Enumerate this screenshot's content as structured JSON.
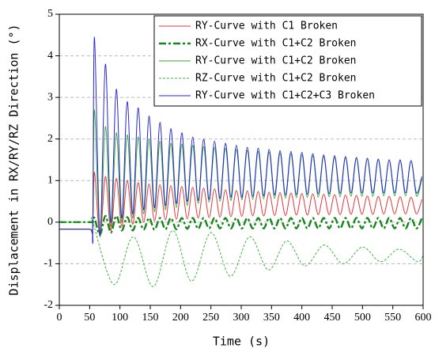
{
  "chart_data": {
    "type": "line",
    "xlabel": "Time (s)",
    "ylabel": "Displacement in RX/RY/RZ Direction (°)",
    "xlim": [
      0,
      600
    ],
    "ylim": [
      -2,
      5
    ],
    "xticks": [
      0,
      50,
      100,
      150,
      200,
      250,
      300,
      350,
      400,
      450,
      500,
      550,
      600
    ],
    "yticks": [
      -2,
      -1,
      0,
      1,
      2,
      3,
      4,
      5
    ],
    "grid": true,
    "legend": "upper right",
    "x": [
      0,
      50,
      55,
      58,
      67,
      76,
      85,
      94,
      103,
      112,
      121,
      130,
      139,
      148,
      157,
      166,
      175,
      184,
      193,
      202,
      211,
      220,
      229,
      238,
      247,
      256,
      265,
      274,
      283,
      292,
      301,
      310,
      319,
      328,
      337,
      346,
      355,
      364,
      373,
      382,
      391,
      400,
      409,
      418,
      427,
      436,
      445,
      454,
      463,
      472,
      481,
      490,
      499,
      508,
      517,
      526,
      535,
      544,
      553,
      562,
      571,
      580,
      589,
      598
    ],
    "series": [
      {
        "name": "RY-Curve with C1 Broken",
        "color": "#e8363a",
        "dash": "solid",
        "values": [
          -0.17,
          -0.17,
          -0.17,
          1.2,
          -0.35,
          1.1,
          -0.2,
          1.05,
          -0.1,
          1.0,
          -0.05,
          0.95,
          0,
          0.92,
          0.03,
          0.9,
          0.05,
          0.88,
          0.07,
          0.86,
          0.08,
          0.84,
          0.1,
          0.82,
          0.11,
          0.8,
          0.12,
          0.78,
          0.13,
          0.76,
          0.14,
          0.75,
          0.15,
          0.74,
          0.15,
          0.72,
          0.16,
          0.71,
          0.16,
          0.7,
          0.17,
          0.69,
          0.17,
          0.68,
          0.18,
          0.67,
          0.18,
          0.66,
          0.18,
          0.65,
          0.19,
          0.64,
          0.19,
          0.63,
          0.19,
          0.62,
          0.2,
          0.62,
          0.2,
          0.61,
          0.2,
          0.6,
          0.2,
          0.55
        ]
      },
      {
        "name": "RX-Curve with C1+C2 Broken",
        "color": "#16861b",
        "dash": "dashdot",
        "values": [
          0,
          0,
          0,
          0.1,
          -0.3,
          0.15,
          -0.25,
          0.15,
          -0.2,
          0.12,
          -0.2,
          0.1,
          -0.18,
          0.1,
          -0.18,
          0.1,
          -0.17,
          0.1,
          -0.17,
          0.1,
          -0.16,
          0.1,
          -0.16,
          0.1,
          -0.15,
          0.1,
          -0.15,
          0.1,
          -0.15,
          0.1,
          -0.15,
          0.1,
          -0.15,
          0.1,
          -0.15,
          0.1,
          -0.15,
          0.1,
          -0.15,
          0.1,
          -0.15,
          0.1,
          -0.15,
          0.1,
          -0.15,
          0.1,
          -0.15,
          0.1,
          -0.15,
          0.1,
          -0.15,
          0.1,
          -0.15,
          0.1,
          -0.15,
          0.1,
          -0.15,
          0.1,
          -0.15,
          0.1,
          -0.15,
          0.1,
          -0.15,
          0.1
        ]
      },
      {
        "name": "RY-Curve with C1+C2 Broken",
        "color": "#3aa63a",
        "dash": "solid",
        "values": [
          -0.17,
          -0.17,
          -0.17,
          2.7,
          -0.35,
          2.3,
          -0.1,
          2.15,
          0,
          2.1,
          0.1,
          2.05,
          0.2,
          2.0,
          0.25,
          1.95,
          0.3,
          1.9,
          0.35,
          1.88,
          0.4,
          1.85,
          0.45,
          1.82,
          0.48,
          1.8,
          0.5,
          1.78,
          0.52,
          1.75,
          0.54,
          1.72,
          0.55,
          1.7,
          0.56,
          1.68,
          0.57,
          1.66,
          0.58,
          1.64,
          0.59,
          1.62,
          0.6,
          1.6,
          0.6,
          1.58,
          0.61,
          1.56,
          0.61,
          1.55,
          0.62,
          1.53,
          0.62,
          1.52,
          0.62,
          1.5,
          0.63,
          1.49,
          0.63,
          1.48,
          0.63,
          1.47,
          0.63,
          1.05
        ]
      },
      {
        "name": "RZ-Curve with C1+C2 Broken",
        "color": "#3cb33c",
        "dash": "dashed",
        "x": [
          0,
          50,
          55,
          90,
          122,
          155,
          187,
          218,
          250,
          282,
          314,
          345,
          375,
          405,
          437,
          468,
          500,
          530,
          560,
          590,
          600
        ],
        "values": [
          0,
          0,
          0,
          -1.5,
          -0.35,
          -1.55,
          -0.2,
          -1.42,
          -0.25,
          -1.3,
          -0.35,
          -1.15,
          -0.45,
          -1.05,
          -0.55,
          -1.0,
          -0.6,
          -0.95,
          -0.65,
          -0.95,
          -0.8
        ]
      },
      {
        "name": "RY-Curve with C1+C2+C3 Broken",
        "color": "#2626d6",
        "dash": "solid",
        "values": [
          -0.17,
          -0.17,
          -0.17,
          4.45,
          -0.3,
          3.8,
          0,
          3.2,
          0.1,
          2.9,
          0.2,
          2.75,
          0.3,
          2.55,
          0.35,
          2.4,
          0.4,
          2.25,
          0.45,
          2.15,
          0.5,
          2.05,
          0.52,
          2.0,
          0.55,
          1.95,
          0.57,
          1.9,
          0.6,
          1.85,
          0.6,
          1.8,
          0.62,
          1.78,
          0.63,
          1.75,
          0.65,
          1.72,
          0.65,
          1.7,
          0.66,
          1.68,
          0.67,
          1.65,
          0.68,
          1.62,
          0.68,
          1.6,
          0.69,
          1.58,
          0.7,
          1.56,
          0.7,
          1.54,
          0.7,
          1.52,
          0.7,
          1.5,
          0.7,
          1.5,
          0.7,
          1.48,
          0.7,
          1.1
        ]
      }
    ]
  }
}
